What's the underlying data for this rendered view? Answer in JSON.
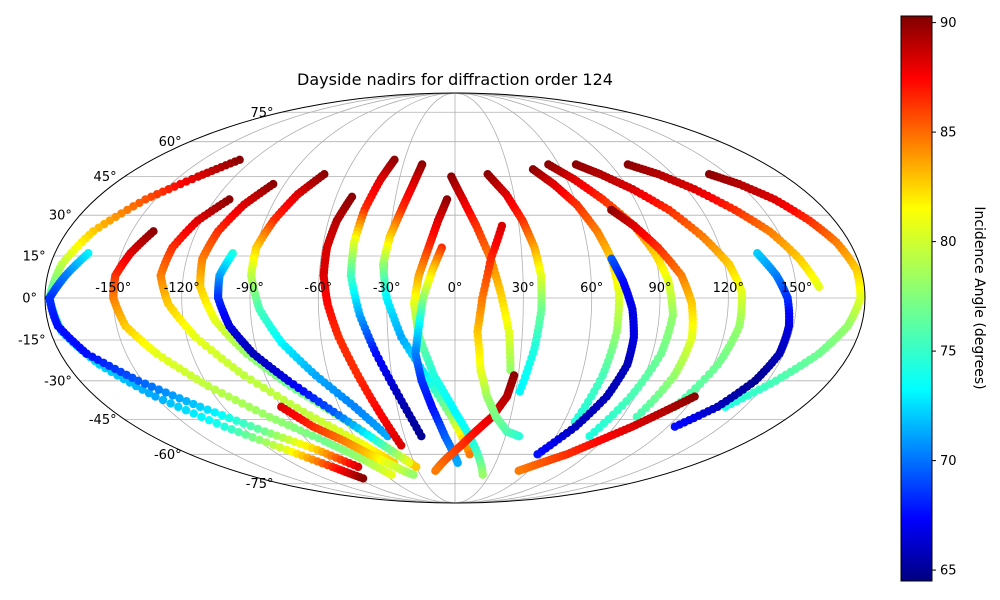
{
  "chart_data": {
    "type": "scatter",
    "projection": "mollweide",
    "title": "Dayside nadirs for diffraction order 124",
    "grid": true,
    "lon_ticks": [
      -150,
      -120,
      -90,
      -60,
      -30,
      0,
      30,
      60,
      90,
      120,
      150
    ],
    "lat_ticks": [
      -75,
      -60,
      -45,
      -30,
      -15,
      0,
      15,
      30,
      45,
      60,
      75
    ],
    "lon_tick_labels": [
      "-150°",
      "-120°",
      "-90°",
      "-60°",
      "-30°",
      "0°",
      "30°",
      "60°",
      "90°",
      "120°",
      "150°"
    ],
    "lat_tick_labels": [
      "-75°",
      "-60°",
      "-45°",
      "-30°",
      "-15°",
      "0°",
      "15°",
      "30°",
      "45°",
      "60°",
      "75°"
    ],
    "colorbar": {
      "label": "Incidence Angle (degrees)",
      "colormap": "jet",
      "range": [
        64.5,
        90.3
      ],
      "ticks": [
        65,
        70,
        75,
        80,
        85,
        90
      ],
      "tick_labels": [
        "65",
        "70",
        "75",
        "80",
        "85",
        "90"
      ]
    },
    "tracks_description_points": "each track: start/end lon-lat in degrees, incidence angle sampled along the track",
    "tracks": [
      {
        "lon": [
          -128,
          -140,
          -155,
          -168,
          -175,
          -178,
          -175,
          -165,
          -150,
          -130,
          -110,
          -95,
          -85
        ],
        "lat": [
          52,
          45,
          36,
          24,
          12,
          0,
          -12,
          -24,
          -36,
          -48,
          -58,
          -66,
          -72
        ],
        "inc": [
          90,
          88,
          85,
          82,
          79,
          76,
          74,
          73,
          72,
          75,
          80,
          86,
          90
        ]
      },
      {
        "lon": [
          -165,
          -172,
          -178,
          -176,
          -168,
          -152,
          -132,
          -110,
          -90,
          -75
        ],
        "lat": [
          16,
          8,
          0,
          -10,
          -20,
          -30,
          -40,
          -50,
          -58,
          -66
        ],
        "inc": [
          74,
          71,
          69,
          68,
          68,
          70,
          73,
          77,
          82,
          88
        ]
      },
      {
        "lon": [
          -140,
          -146,
          -150,
          -150,
          -146,
          -136,
          -120,
          -100,
          -80,
          -66,
          -55
        ],
        "lat": [
          24,
          16,
          8,
          0,
          -10,
          -20,
          -32,
          -44,
          -54,
          -62,
          -70
        ],
        "inc": [
          90,
          88,
          86,
          84,
          82,
          80,
          79,
          78,
          77,
          78,
          80
        ]
      },
      {
        "lon": [
          -113,
          -122,
          -128,
          -130,
          -126,
          -116,
          -100,
          -80,
          -60,
          -45
        ],
        "lat": [
          36,
          28,
          18,
          8,
          -2,
          -14,
          -28,
          -42,
          -54,
          -64
        ],
        "inc": [
          90,
          88,
          86,
          84,
          82,
          80,
          79,
          79,
          80,
          82
        ]
      },
      {
        "lon": [
          -96,
          -104,
          -110,
          -113,
          -112,
          -106,
          -95,
          -80,
          -62,
          -45,
          -30
        ],
        "lat": [
          42,
          34,
          24,
          14,
          4,
          -8,
          -20,
          -32,
          -44,
          -56,
          -66
        ],
        "inc": [
          90,
          88,
          86,
          84,
          82,
          80,
          78,
          77,
          78,
          80,
          82
        ]
      },
      {
        "lon": [
          -100,
          -104,
          -104,
          -100,
          -92,
          -80,
          -64,
          -48,
          -34
        ],
        "lat": [
          16,
          8,
          0,
          -10,
          -20,
          -30,
          -42,
          -54,
          -64
        ],
        "inc": [
          75,
          72,
          69,
          67,
          66,
          67,
          70,
          75,
          80
        ]
      },
      {
        "lon": [
          -72,
          -80,
          -86,
          -90,
          -90,
          -86,
          -78,
          -66,
          -52,
          -40
        ],
        "lat": [
          46,
          38,
          28,
          18,
          8,
          -4,
          -16,
          -28,
          -40,
          -52
        ],
        "inc": [
          90,
          88,
          86,
          82,
          79,
          76,
          74,
          72,
          71,
          72
        ]
      },
      {
        "lon": [
          -52,
          -56,
          -58,
          -58,
          -56,
          -52,
          -46,
          -40,
          -34
        ],
        "lat": [
          37,
          28,
          18,
          8,
          -2,
          -14,
          -28,
          -42,
          -56
        ],
        "inc": [
          90,
          89,
          88,
          88,
          87,
          86,
          86,
          87,
          88
        ]
      },
      {
        "lon": [
          -36,
          -40,
          -44,
          -46,
          -46,
          -42,
          -36,
          -28,
          -20
        ],
        "lat": [
          52,
          44,
          32,
          20,
          8,
          -6,
          -20,
          -36,
          -52
        ],
        "inc": [
          90,
          88,
          86,
          80,
          76,
          72,
          68,
          66,
          65
        ]
      },
      {
        "lon": [
          -19,
          -22,
          -26,
          -30,
          -32,
          -30,
          -24,
          -14,
          -2,
          10
        ],
        "lat": [
          50,
          42,
          32,
          22,
          12,
          0,
          -14,
          -28,
          -44,
          -60
        ],
        "inc": [
          90,
          88,
          86,
          82,
          78,
          74,
          72,
          74,
          78,
          84
        ]
      },
      {
        "lon": [
          -4,
          -8,
          -12,
          -16,
          -18,
          -16,
          -10,
          0,
          12,
          24
        ],
        "lat": [
          36,
          28,
          18,
          8,
          -2,
          -14,
          -28,
          -42,
          -56,
          -70
        ],
        "inc": [
          90,
          88,
          86,
          83,
          80,
          77,
          75,
          74,
          75,
          78
        ]
      },
      {
        "lon": [
          -6,
          -10,
          -14,
          -16,
          -18,
          -16,
          -12,
          -6,
          2
        ],
        "lat": [
          18,
          10,
          0,
          -10,
          -20,
          -30,
          -40,
          -52,
          -64
        ],
        "inc": [
          86,
          82,
          78,
          74,
          71,
          69,
          68,
          70,
          72
        ]
      },
      {
        "lon": [
          -2,
          4,
          10,
          16,
          20,
          24,
          26
        ],
        "lat": [
          45,
          36,
          26,
          14,
          2,
          -12,
          -26
        ],
        "inc": [
          90,
          88,
          86,
          84,
          82,
          80,
          78
        ]
      },
      {
        "lon": [
          28,
          26,
          20,
          12,
          4,
          -6,
          -16
        ],
        "lat": [
          -28,
          -36,
          -44,
          -50,
          -56,
          -62,
          -68
        ],
        "inc": [
          90,
          89,
          88,
          87,
          86,
          85,
          84
        ]
      },
      {
        "lon": [
          38,
          30,
          22,
          16,
          12,
          10,
          12,
          16,
          22
        ],
        "lat": [
          -52,
          -50,
          -44,
          -36,
          -26,
          -12,
          0,
          14,
          26
        ],
        "inc": [
          75,
          76,
          77,
          78,
          80,
          82,
          84,
          86,
          88
        ]
      },
      {
        "lon": [
          18,
          26,
          32,
          36,
          38,
          38,
          36,
          32
        ],
        "lat": [
          46,
          38,
          28,
          18,
          8,
          -4,
          -18,
          -34
        ],
        "inc": [
          90,
          88,
          86,
          83,
          80,
          77,
          75,
          74
        ]
      },
      {
        "lon": [
          44,
          52,
          60,
          66,
          70,
          72,
          72,
          70,
          66
        ],
        "lat": [
          48,
          42,
          34,
          24,
          14,
          2,
          -12,
          -28,
          -46
        ],
        "inc": [
          90,
          88,
          86,
          84,
          82,
          80,
          78,
          76,
          75
        ]
      },
      {
        "lon": [
          54,
          64,
          74,
          84,
          90,
          94,
          96,
          94,
          88,
          80
        ],
        "lat": [
          50,
          44,
          36,
          26,
          16,
          6,
          -6,
          -20,
          -36,
          -52
        ],
        "inc": [
          90,
          88,
          86,
          84,
          82,
          80,
          78,
          77,
          76,
          75
        ]
      },
      {
        "lon": [
          70,
          74,
          78,
          80,
          80,
          76,
          68,
          56
        ],
        "lat": [
          14,
          6,
          -4,
          -14,
          -24,
          -36,
          -48,
          -60
        ],
        "inc": [
          70,
          68,
          67,
          67,
          66,
          66,
          66,
          68
        ]
      },
      {
        "lon": [
          76,
          84,
          92,
          100,
          104,
          106,
          104,
          98
        ],
        "lat": [
          32,
          26,
          18,
          8,
          -2,
          -14,
          -28,
          -44
        ],
        "inc": [
          90,
          88,
          86,
          84,
          82,
          80,
          78,
          76
        ]
      },
      {
        "lon": [
          70,
          80,
          92,
          104,
          114,
          122,
          126,
          126,
          122,
          114
        ],
        "lat": [
          50,
          46,
          40,
          32,
          22,
          12,
          2,
          -10,
          -24,
          -40
        ],
        "inc": [
          90,
          89,
          88,
          86,
          84,
          82,
          80,
          78,
          77,
          76
        ]
      },
      {
        "lon": [
          100,
          112,
          124,
          136,
          146,
          154,
          160
        ],
        "lat": [
          50,
          46,
          40,
          32,
          24,
          14,
          4
        ],
        "inc": [
          90,
          89,
          88,
          86,
          84,
          82,
          80
        ]
      },
      {
        "lon": [
          140,
          150,
          160,
          168,
          174,
          178,
          178,
          174,
          166,
          154,
          140
        ],
        "lat": [
          46,
          42,
          36,
          28,
          20,
          10,
          0,
          -10,
          -20,
          -30,
          -40
        ],
        "inc": [
          90,
          89,
          88,
          86,
          84,
          82,
          80,
          78,
          77,
          76,
          75
        ]
      },
      {
        "lon": [
          136,
          142,
          146,
          148,
          148,
          144,
          136,
          124
        ],
        "lat": [
          16,
          8,
          0,
          -10,
          -20,
          -30,
          -40,
          -48
        ],
        "inc": [
          73,
          71,
          69,
          67,
          66,
          65,
          66,
          68
        ]
      },
      {
        "lon": [
          120,
          110,
          100,
          88,
          76,
          64,
          52
        ],
        "lat": [
          -36,
          -42,
          -48,
          -54,
          -60,
          -64,
          -68
        ],
        "inc": [
          90,
          89,
          88,
          87,
          86,
          85,
          84
        ]
      },
      {
        "lon": [
          -90,
          -80,
          -68,
          -58,
          -50,
          -42,
          -36
        ],
        "lat": [
          -40,
          -48,
          -54,
          -60,
          -64,
          -68,
          -70
        ],
        "inc": [
          88,
          86,
          84,
          82,
          80,
          79,
          78
        ]
      }
    ]
  }
}
